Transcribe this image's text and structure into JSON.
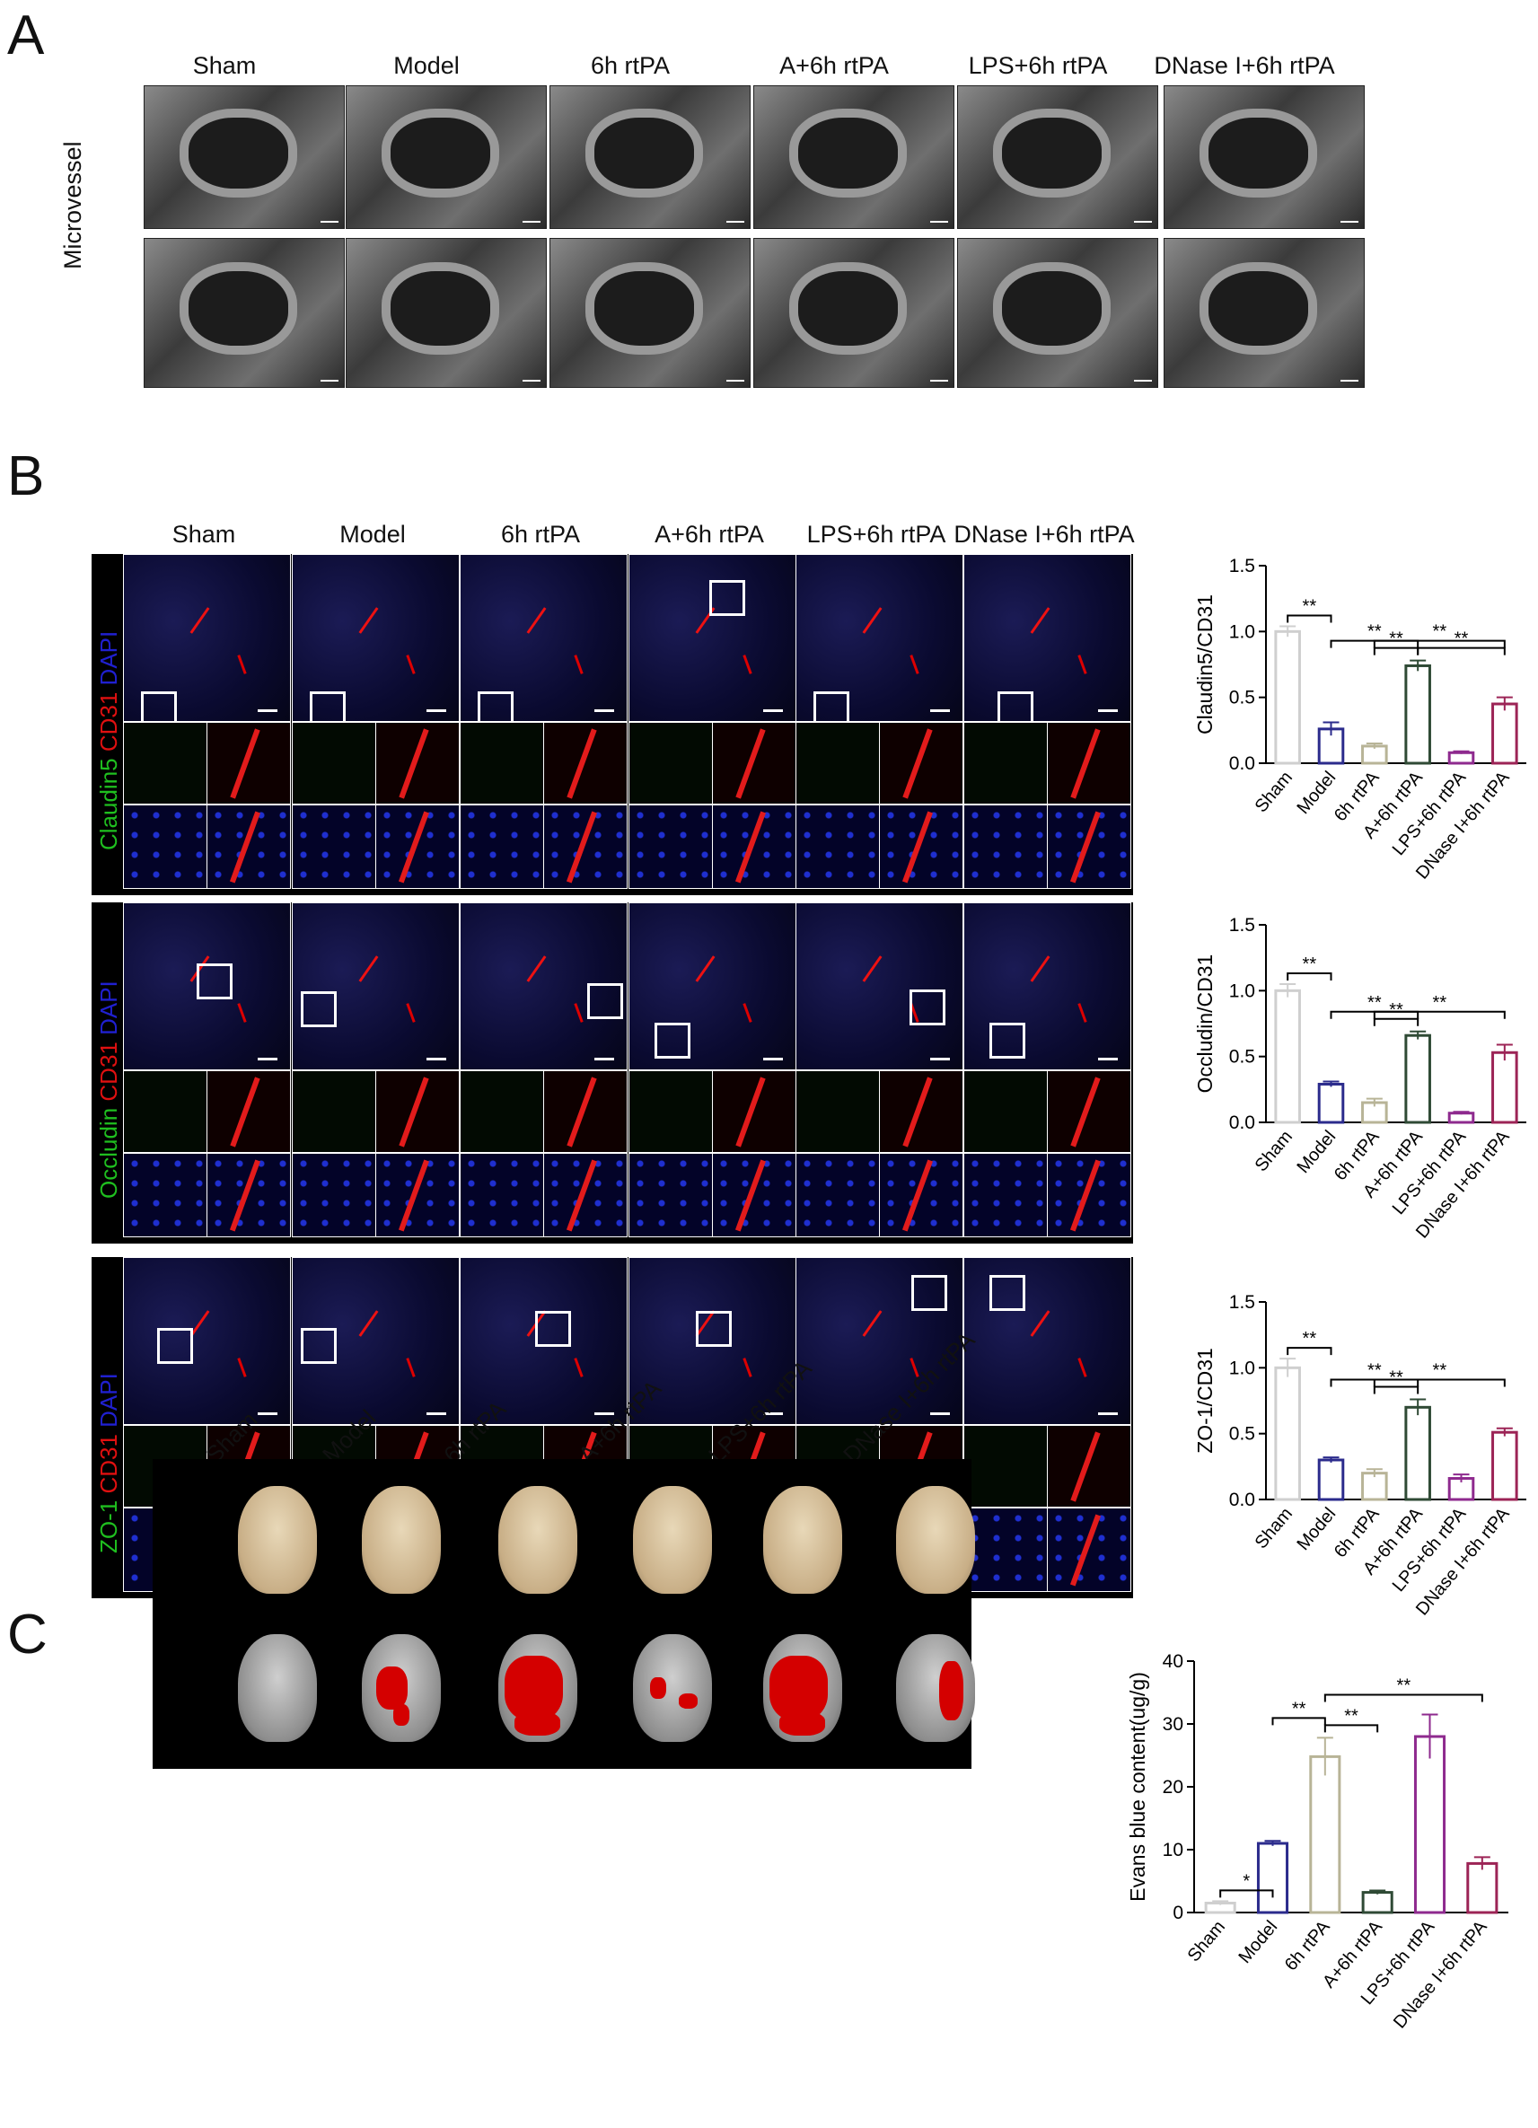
{
  "panels": {
    "A": "A",
    "B": "B",
    "C": "C"
  },
  "groups": [
    "Sham",
    "Model",
    "6h rtPA",
    "A+6h rtPA",
    "LPS+6h rtPA",
    "DNase I+6h rtPA"
  ],
  "panel_a": {
    "row_label": "Microvessel"
  },
  "panel_b": {
    "stains": [
      {
        "label_1": "Claudin5",
        "label_2": "CD31",
        "label_3": "DAPI",
        "colors": [
          "#1fbf1f",
          "#e01010",
          "#2020d0"
        ]
      },
      {
        "label_1": "Occludin",
        "label_2": "CD31",
        "label_3": "DAPI",
        "colors": [
          "#1fbf1f",
          "#e01010",
          "#2020d0"
        ]
      },
      {
        "label_1": "ZO-1",
        "label_2": "CD31",
        "label_3": "DAPI",
        "colors": [
          "#1fbf1f",
          "#e01010",
          "#2020d0"
        ]
      }
    ]
  },
  "chart_data": [
    {
      "type": "bar",
      "ylabel": "Claudin5/CD31",
      "categories": [
        "Sham",
        "Model",
        "6h rtPA",
        "A+6h rtPA",
        "LPS+6h rtPA",
        "DNase I+6h rtPA"
      ],
      "values": [
        1.0,
        0.26,
        0.13,
        0.74,
        0.08,
        0.45
      ],
      "errors": [
        0.04,
        0.05,
        0.02,
        0.04,
        0.01,
        0.05
      ],
      "ylim": [
        0,
        1.5
      ],
      "yticks": [
        "0.0",
        "0.5",
        "1.0",
        "1.5"
      ],
      "colors": [
        "#cfcfcf",
        "#2b2b8c",
        "#b8b497",
        "#2f4a35",
        "#8e2a8e",
        "#9c2456"
      ],
      "significance": [
        {
          "from": 0,
          "to": 1,
          "label": "**"
        },
        {
          "from": 1,
          "to": 3,
          "label": "**"
        },
        {
          "from": 2,
          "to": 3,
          "label": "**"
        },
        {
          "from": 2,
          "to": 5,
          "label": "**"
        },
        {
          "from": 3,
          "to": 5,
          "label": "**"
        }
      ]
    },
    {
      "type": "bar",
      "ylabel": "Occludin/CD31",
      "categories": [
        "Sham",
        "Model",
        "6h rtPA",
        "A+6h rtPA",
        "LPS+6h rtPA",
        "DNase I+6h rtPA"
      ],
      "values": [
        1.0,
        0.29,
        0.15,
        0.66,
        0.07,
        0.53
      ],
      "errors": [
        0.05,
        0.02,
        0.03,
        0.03,
        0.01,
        0.06
      ],
      "ylim": [
        0,
        1.5
      ],
      "yticks": [
        "0.0",
        "0.5",
        "1.0",
        "1.5"
      ],
      "colors": [
        "#cfcfcf",
        "#2b2b8c",
        "#b8b497",
        "#2f4a35",
        "#8e2a8e",
        "#9c2456"
      ],
      "significance": [
        {
          "from": 0,
          "to": 1,
          "label": "**"
        },
        {
          "from": 1,
          "to": 3,
          "label": "**"
        },
        {
          "from": 2,
          "to": 3,
          "label": "**"
        },
        {
          "from": 2,
          "to": 5,
          "label": "**"
        }
      ]
    },
    {
      "type": "bar",
      "ylabel": "ZO-1/CD31",
      "categories": [
        "Sham",
        "Model",
        "6h rtPA",
        "A+6h rtPA",
        "LPS+6h rtPA",
        "DNase I+6h rtPA"
      ],
      "values": [
        1.0,
        0.3,
        0.2,
        0.7,
        0.16,
        0.51
      ],
      "errors": [
        0.07,
        0.02,
        0.03,
        0.06,
        0.03,
        0.03
      ],
      "ylim": [
        0,
        1.5
      ],
      "yticks": [
        "0.0",
        "0.5",
        "1.0",
        "1.5"
      ],
      "colors": [
        "#cfcfcf",
        "#2b2b8c",
        "#b8b497",
        "#2f4a35",
        "#8e2a8e",
        "#9c2456"
      ],
      "significance": [
        {
          "from": 0,
          "to": 1,
          "label": "**"
        },
        {
          "from": 1,
          "to": 3,
          "label": "**"
        },
        {
          "from": 2,
          "to": 3,
          "label": "**"
        },
        {
          "from": 2,
          "to": 5,
          "label": "**"
        }
      ]
    },
    {
      "type": "bar",
      "ylabel": "Evans blue content(ug/g)",
      "categories": [
        "Sham",
        "Model",
        "6h rtPA",
        "A+6h rtPA",
        "LPS+6h rtPA",
        "DNase I+6h rtPA"
      ],
      "values": [
        1.5,
        11.0,
        24.8,
        3.2,
        28.0,
        7.8
      ],
      "errors": [
        0.3,
        0.4,
        3.0,
        0.3,
        3.5,
        1.0
      ],
      "ylim": [
        0,
        40
      ],
      "yticks": [
        "0",
        "10",
        "20",
        "30",
        "40"
      ],
      "colors": [
        "#cfcfcf",
        "#2b2b8c",
        "#b8b497",
        "#2f4a35",
        "#8e2a8e",
        "#9c2456"
      ],
      "significance": [
        {
          "from": 0,
          "to": 1,
          "label": "*"
        },
        {
          "from": 1,
          "to": 2,
          "label": "**"
        },
        {
          "from": 2,
          "to": 3,
          "label": "**"
        },
        {
          "from": 2,
          "to": 5,
          "label": "**"
        }
      ]
    }
  ]
}
